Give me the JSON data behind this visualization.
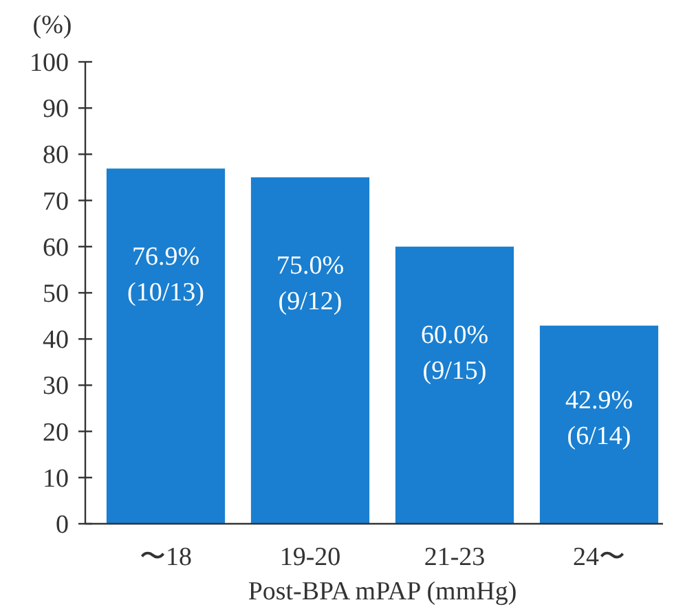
{
  "chart_data": {
    "type": "bar",
    "ylabel": "(%)",
    "xlabel": "Post-BPA mPAP (mmHg)",
    "categories": [
      "〜18",
      "19-20",
      "21-23",
      "24〜"
    ],
    "values": [
      76.9,
      75.0,
      60.0,
      42.9
    ],
    "value_labels": [
      "76.9%\n(10/13)",
      "75.0%\n(9/12)",
      "60.0%\n(9/15)",
      "42.9%\n(6/14)"
    ],
    "color": "#1a7fd0",
    "ylim": [
      0,
      100
    ],
    "yticks": [
      0,
      10,
      20,
      30,
      40,
      50,
      60,
      70,
      80,
      90,
      100
    ],
    "grid": false
  }
}
